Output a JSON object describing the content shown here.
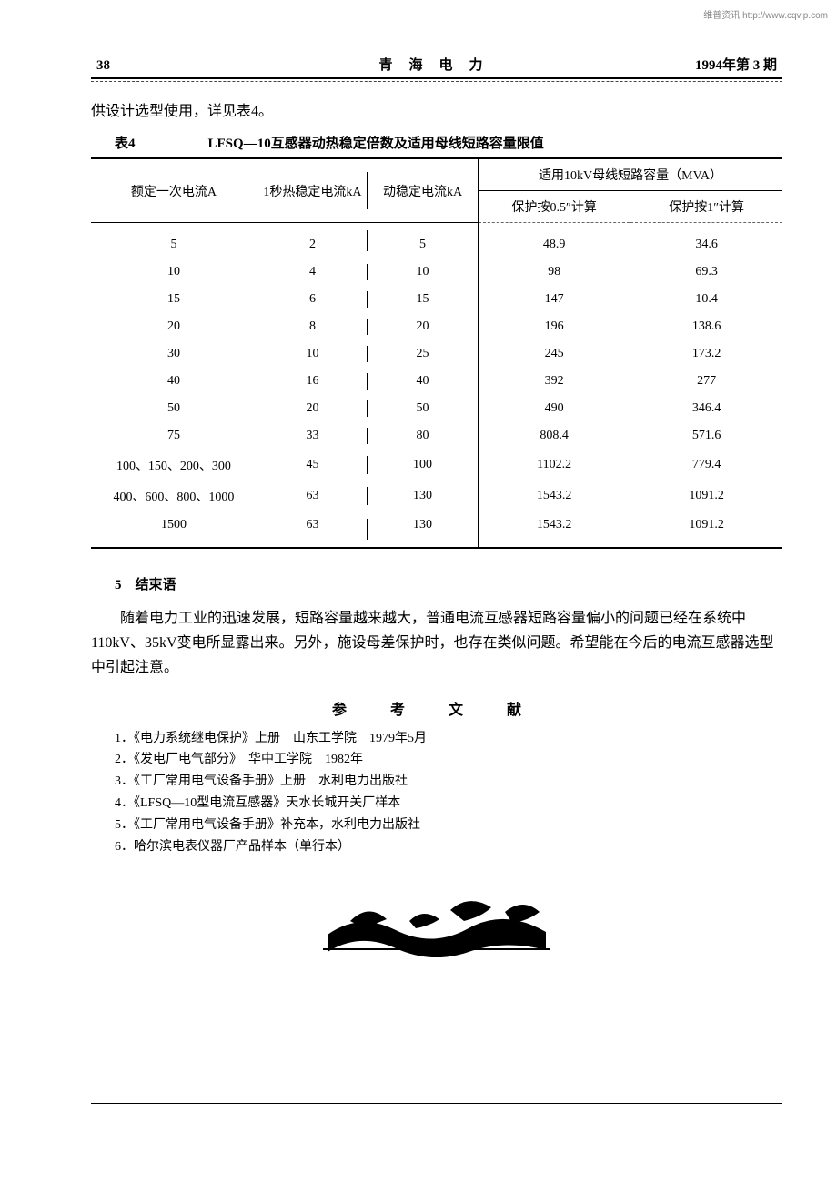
{
  "watermark": "维普资讯 http://www.cqvip.com",
  "header": {
    "page_no": "38",
    "journal": "青海电力",
    "issue": "1994年第 3 期"
  },
  "intro": "供设计选型使用，详见表4。",
  "table": {
    "label": "表4",
    "title": "LFSQ—10互感器动热稳定倍数及适用母线短路容量限值",
    "columns": {
      "c1": "额定一次电流A",
      "c2": "1秒热稳定电流kA",
      "c3": "动稳定电流kA",
      "group": "适用10kV母线短路容量（MVA）",
      "c4": "保护按0.5″计算",
      "c5": "保护按1″计算"
    },
    "rows": [
      [
        "5",
        "2",
        "5",
        "48.9",
        "34.6"
      ],
      [
        "10",
        "4",
        "10",
        "98",
        "69.3"
      ],
      [
        "15",
        "6",
        "15",
        "147",
        "10.4"
      ],
      [
        "20",
        "8",
        "20",
        "196",
        "138.6"
      ],
      [
        "30",
        "10",
        "25",
        "245",
        "173.2"
      ],
      [
        "40",
        "16",
        "40",
        "392",
        "277"
      ],
      [
        "50",
        "20",
        "50",
        "490",
        "346.4"
      ],
      [
        "75",
        "33",
        "80",
        "808.4",
        "571.6"
      ],
      [
        "100、150、200、300",
        "45",
        "100",
        "1102.2",
        "779.4"
      ],
      [
        "400、600、800、1000",
        "63",
        "130",
        "1543.2",
        "1091.2"
      ],
      [
        "1500",
        "63",
        "130",
        "1543.2",
        "1091.2"
      ]
    ],
    "col_widths_pct": [
      24,
      16,
      16,
      22,
      22
    ],
    "border_color": "#000000",
    "font_size_pt": 10
  },
  "section5": {
    "heading": "5　结束语",
    "paragraph": "随着电力工业的迅速发展，短路容量越来越大，普通电流互感器短路容量偏小的问题已经在系统中110kV、35kV变电所显露出来。另外，施设母差保护时，也存在类似问题。希望能在今后的电流互感器选型中引起注意。"
  },
  "references": {
    "heading": "参 考 文 献",
    "items": [
      "1．《电力系统继电保护》上册　山东工学院　1979年5月",
      "2．《发电厂电气部分》　华中工学院　1982年",
      "3．《工厂常用电气设备手册》上册　水利电力出版社",
      "4．《LFSQ—10型电流互感器》天水长城开关厂样本",
      "5．《工厂常用电气设备手册》补充本，水利电力出版社",
      "6．哈尔滨电表仪器厂产品样本（单行本）"
    ]
  },
  "styles": {
    "page_bg": "#ffffff",
    "text_color": "#000000",
    "body_font_size_pt": 12,
    "heading_font_size_pt": 11
  }
}
